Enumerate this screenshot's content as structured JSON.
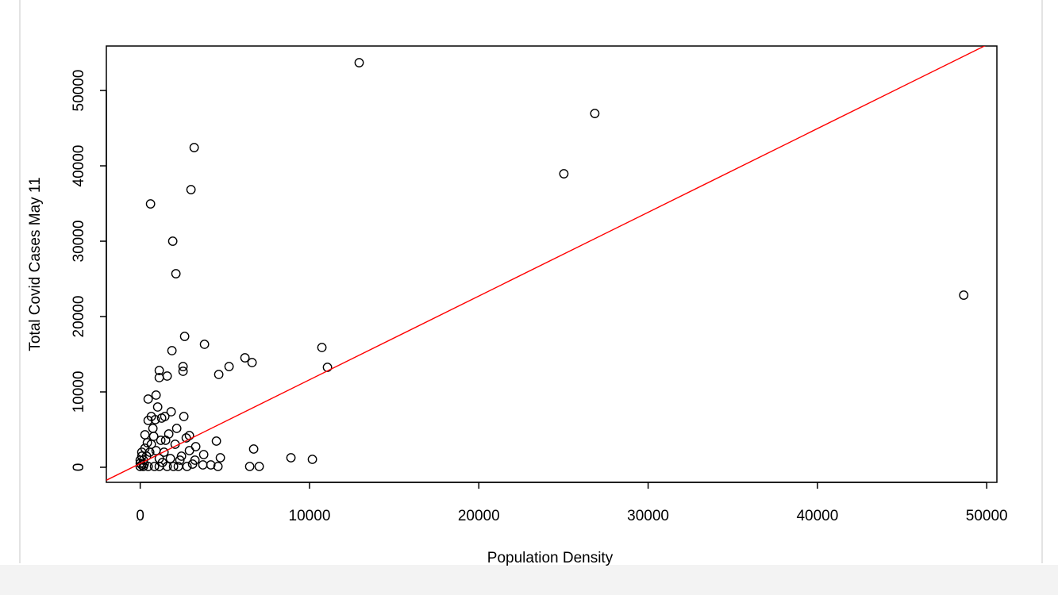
{
  "chart_data": {
    "type": "scatter",
    "x_label": "Population Density",
    "y_label": "Total Covid Cases May 11",
    "x": [
      12933,
      26851,
      25023,
      48641,
      3187,
      2999,
      609,
      1921,
      2109,
      2624,
      3796,
      1874,
      10731,
      11059,
      6186,
      6607,
      5248,
      4639,
      2530,
      2530,
      1125,
      1125,
      1593,
      469,
      937,
      8903,
      10169,
      6701,
      4499,
      4733,
      6467,
      7029,
      4592,
      3749,
      3280,
      2905,
      2577,
      1828,
      1031,
      1453,
      656,
      469,
      890,
      1265,
      2156,
      1687,
      281,
      797,
      1500,
      2062,
      2718,
      2343,
      3093,
      4171,
      3702,
      2765,
      94,
      187,
      375,
      562,
      94,
      281,
      656,
      937,
      1125,
      1312,
      1593,
      469,
      843,
      1125,
      1968,
      2249,
      187,
      0,
      0,
      94,
      422,
      750,
      1218,
      1406,
      1781,
      2437,
      2905,
      3233,
      0,
      234
    ],
    "values": [
      53684,
      46947,
      38947,
      22842,
      42421,
      36842,
      34947,
      30000,
      25684,
      17368,
      16316,
      15474,
      15895,
      13263,
      14526,
      13895,
      13368,
      12316,
      13368,
      12737,
      12842,
      11895,
      12105,
      9053,
      9579,
      1263,
      1053,
      2421,
      3474,
      1263,
      105,
      105,
      105,
      1684,
      2737,
      4211,
      6737,
      7368,
      8000,
      6737,
      6737,
      6211,
      6316,
      6526,
      5158,
      4421,
      4316,
      4105,
      3579,
      3053,
      3895,
      947,
      421,
      316,
      316,
      105,
      316,
      947,
      1474,
      2000,
      1474,
      2526,
      3053,
      2211,
      1158,
      632,
      105,
      105,
      105,
      105,
      105,
      105,
      105,
      105,
      526,
      2000,
      3263,
      5158,
      3579,
      2000,
      1158,
      1474,
      2211,
      947,
      947,
      421
    ],
    "color": "#000000",
    "fit_line": {
      "intercept": 502,
      "slope": 1.111,
      "color": "#ff0000"
    },
    "xlim": [
      -2000,
      50600
    ],
    "ylim": [
      -2000,
      55900
    ],
    "xticks": [
      0,
      10000,
      20000,
      30000,
      40000,
      50000
    ],
    "yticks": [
      0,
      10000,
      20000,
      30000,
      40000,
      50000
    ]
  }
}
